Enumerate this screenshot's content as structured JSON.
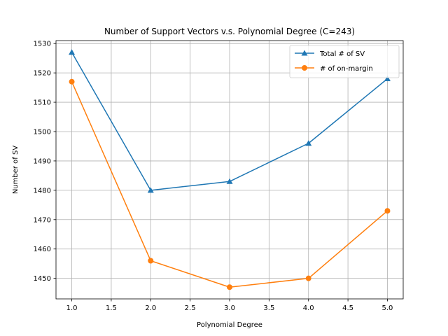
{
  "chart_data": {
    "type": "line",
    "title": "Number of Support Vectors v.s. Polynomial Degree (C=243)",
    "xlabel": "Polynomial Degree",
    "ylabel": "Number of SV",
    "x": [
      1.0,
      2.0,
      3.0,
      4.0,
      5.0
    ],
    "xlim": [
      0.8,
      5.2
    ],
    "ylim": [
      1443,
      1531
    ],
    "x_ticks": [
      1.0,
      1.5,
      2.0,
      2.5,
      3.0,
      3.5,
      4.0,
      4.5,
      5.0
    ],
    "x_tick_labels": [
      "1.0",
      "1.5",
      "2.0",
      "2.5",
      "3.0",
      "3.5",
      "4.0",
      "4.5",
      "5.0"
    ],
    "y_ticks": [
      1450,
      1460,
      1470,
      1480,
      1490,
      1500,
      1510,
      1520,
      1530
    ],
    "y_tick_labels": [
      "1450",
      "1460",
      "1470",
      "1480",
      "1490",
      "1500",
      "1510",
      "1520",
      "1530"
    ],
    "grid": true,
    "legend_position": "top-right",
    "series": [
      {
        "name": "Total # of SV",
        "values": [
          1527,
          1480,
          1483,
          1496,
          1518
        ],
        "color": "#1f77b4",
        "marker": "triangle"
      },
      {
        "name": "# of on-margin",
        "values": [
          1517,
          1456,
          1447,
          1450,
          1473
        ],
        "color": "#ff7f0e",
        "marker": "circle"
      }
    ]
  }
}
